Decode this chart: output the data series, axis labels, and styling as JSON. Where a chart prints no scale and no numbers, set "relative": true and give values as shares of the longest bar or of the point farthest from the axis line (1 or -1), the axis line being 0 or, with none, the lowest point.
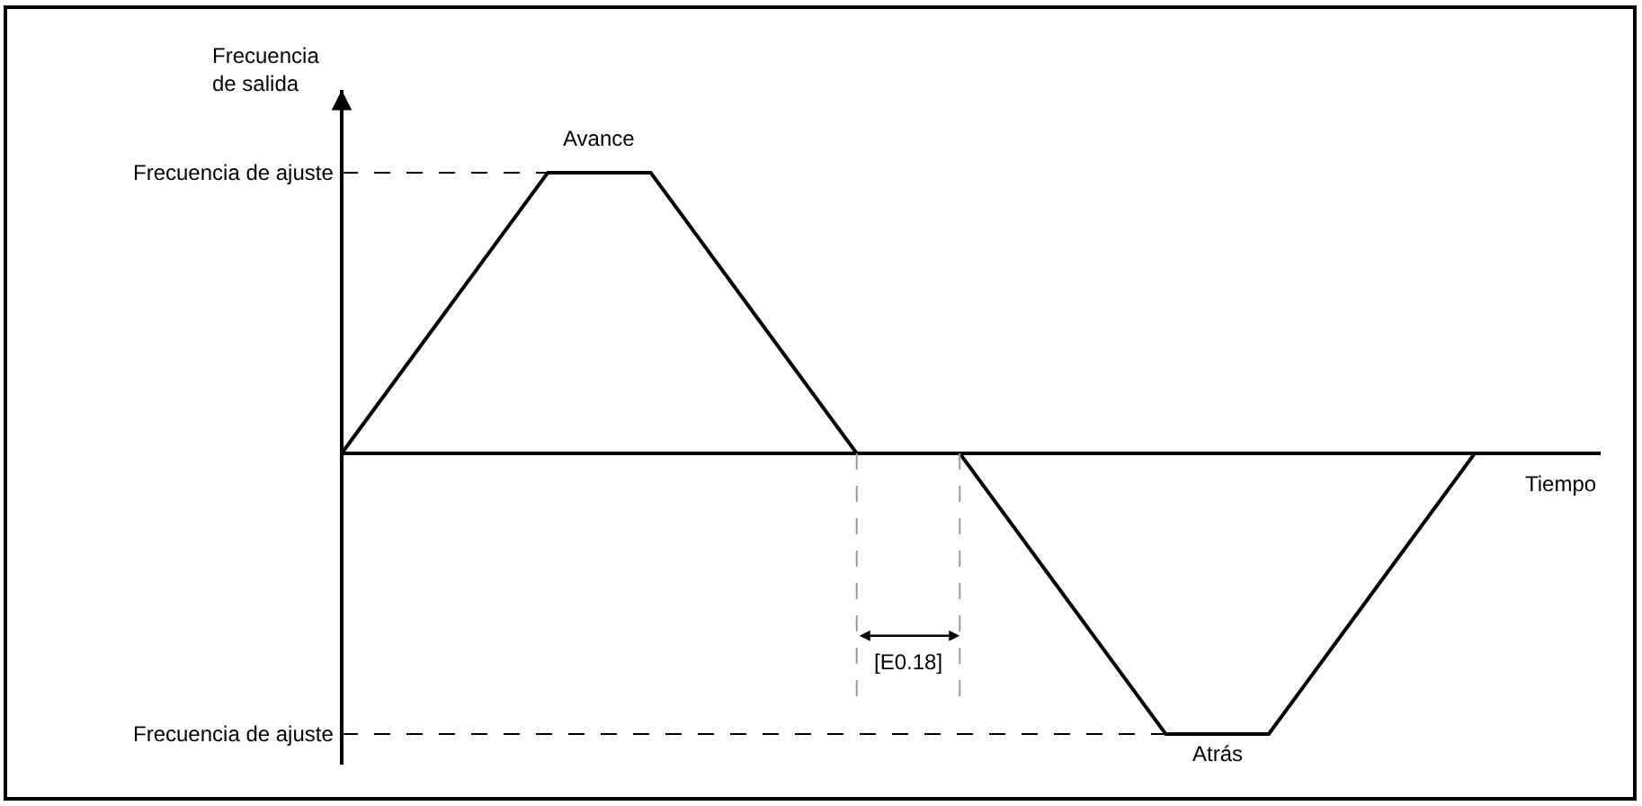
{
  "chart_data": {
    "type": "line",
    "relative": true,
    "xlabel": "Tiempo",
    "ylabel": "Frecuencia\nde salida",
    "categories": [
      null,
      null,
      null,
      null,
      null,
      null,
      null,
      null,
      null,
      null,
      null,
      null
    ],
    "series": [
      {
        "color": "#000000",
        "values": [
          0,
          0.5,
          1,
          1,
          0.5,
          0,
          0,
          -0.5,
          -1,
          -1,
          -0.5,
          0
        ]
      }
    ],
    "ref_lines": [
      {
        "axis": "y",
        "value": 1,
        "label": "Frecuencia de ajuste",
        "line_style": "dashed",
        "color": "#000000"
      },
      {
        "axis": "y",
        "value": -1,
        "label": "Frecuencia de ajuste",
        "line_style": "dashed",
        "color": "#000000"
      }
    ],
    "annotations": [
      "Avance",
      "Atrás",
      "[E0.18]"
    ],
    "marker": "none",
    "line_style": "solid"
  }
}
